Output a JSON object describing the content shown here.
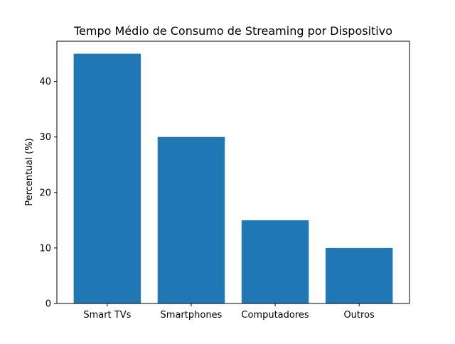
{
  "chart_data": {
    "type": "bar",
    "title": "Tempo Médio de Consumo de Streaming por Dispositivo",
    "xlabel": "",
    "ylabel": "Percentual (%)",
    "categories": [
      "Smart TVs",
      "Smartphones",
      "Computadores",
      "Outros"
    ],
    "values": [
      45,
      30,
      15,
      10
    ],
    "ylim": [
      0,
      47.25
    ],
    "yticks": [
      0,
      10,
      20,
      30,
      40
    ],
    "bar_color": "#1f77b4",
    "grid": false,
    "legend": "none"
  }
}
